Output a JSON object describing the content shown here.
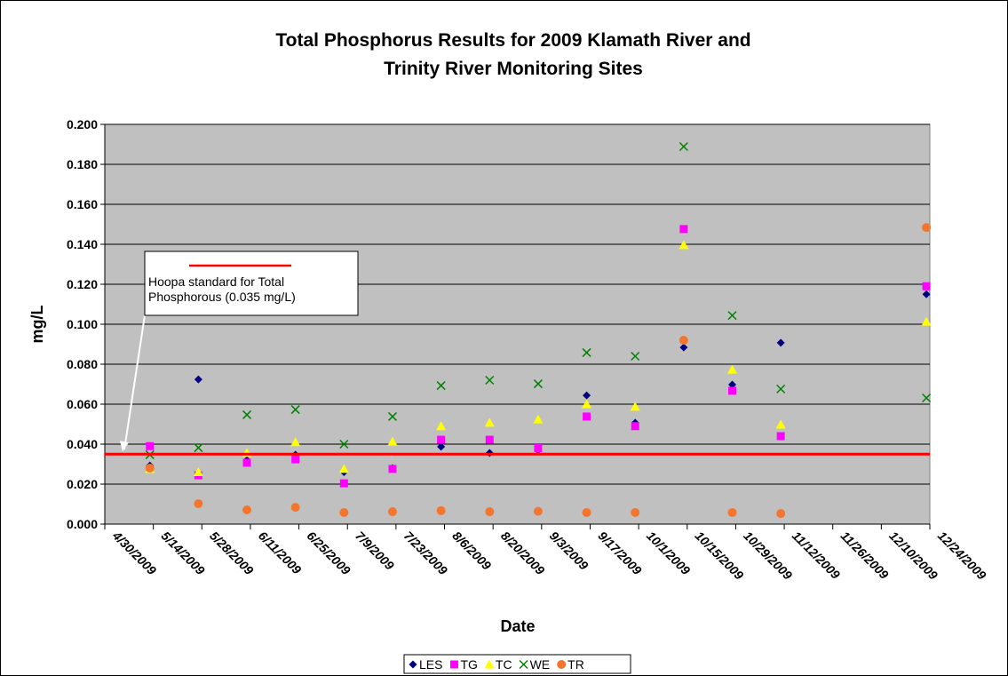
{
  "chart_data": {
    "type": "scatter",
    "title": [
      "Total Phosphorus Results for 2009 Klamath River and",
      "Trinity River Monitoring Sites"
    ],
    "xlabel": "Date",
    "ylabel": "mg/L",
    "x": [
      "5/13/2009",
      "5/27/2009",
      "6/10/2009",
      "6/24/2009",
      "7/8/2009",
      "7/22/2009",
      "8/5/2009",
      "8/19/2009",
      "9/2/2009",
      "9/16/2009",
      "9/30/2009",
      "10/14/2009",
      "10/28/2009",
      "11/11/2009",
      "12/23/2009"
    ],
    "series": [
      {
        "name": "LES",
        "color": "#000080",
        "marker": "diamond",
        "values": [
          0.0293,
          0.0724,
          0.032,
          0.0347,
          0.026,
          0.028,
          0.0387,
          0.0356,
          0.037,
          0.0644,
          0.0507,
          0.0884,
          0.0698,
          0.0907,
          0.115
        ]
      },
      {
        "name": "TG",
        "color": "#ff00ff",
        "marker": "square",
        "values": [
          0.039,
          0.0244,
          0.0307,
          0.0324,
          0.0204,
          0.0276,
          0.0422,
          0.0422,
          0.038,
          0.0538,
          0.049,
          0.1476,
          0.0667,
          0.044,
          0.119
        ]
      },
      {
        "name": "TC",
        "color": "#ffff00",
        "marker": "triangle",
        "values": [
          0.0276,
          0.026,
          0.0356,
          0.041,
          0.0276,
          0.0413,
          0.049,
          0.0507,
          0.0524,
          0.06,
          0.0587,
          0.1396,
          0.0773,
          0.0498,
          0.1013
        ]
      },
      {
        "name": "WE",
        "color": "#008000",
        "marker": "x",
        "values": [
          0.0347,
          0.0382,
          0.0547,
          0.0573,
          0.04,
          0.0538,
          0.0693,
          0.072,
          0.0702,
          0.0858,
          0.084,
          0.1889,
          0.1044,
          0.0676,
          0.0631
        ]
      },
      {
        "name": "TR",
        "color": "#f4762e",
        "marker": "circle",
        "values": [
          0.028,
          0.0102,
          0.0071,
          0.0084,
          0.0058,
          0.0062,
          0.0067,
          0.0062,
          0.0064,
          0.0058,
          0.0058,
          0.092,
          0.0058,
          0.0053,
          0.1484
        ]
      }
    ],
    "xlim": [
      "4/30/2009",
      "12/24/2009"
    ],
    "xticks": [
      "4/30/2009",
      "5/14/2009",
      "5/28/2009",
      "6/11/2009",
      "6/25/2009",
      "7/9/2009",
      "7/23/2009",
      "8/6/2009",
      "8/20/2009",
      "9/3/2009",
      "9/17/2009",
      "10/1/2009",
      "10/15/2009",
      "10/29/2009",
      "11/12/2009",
      "11/26/2009",
      "12/10/2009",
      "12/24/2009"
    ],
    "ylim": [
      0,
      0.2
    ],
    "yticks": [
      {
        "value": 0,
        "label": "0.000"
      },
      {
        "value": 0.02,
        "label": "0.020"
      },
      {
        "value": 0.04,
        "label": "0.040"
      },
      {
        "value": 0.06,
        "label": "0.060"
      },
      {
        "value": 0.08,
        "label": "0.080"
      },
      {
        "value": 0.1,
        "label": "0.100"
      },
      {
        "value": 0.12,
        "label": "0.120"
      },
      {
        "value": 0.14,
        "label": "0.140"
      },
      {
        "value": 0.16,
        "label": "0.160"
      },
      {
        "value": 0.18,
        "label": "0.180"
      },
      {
        "value": 0.2,
        "label": "0.200"
      }
    ],
    "grid": true,
    "legend": "bottom",
    "reference_line": {
      "value": 0.035,
      "color": "#ff0000",
      "label": [
        "Hoopa standard for Total",
        "Phosphorous (0.035 mg/L)"
      ]
    }
  }
}
